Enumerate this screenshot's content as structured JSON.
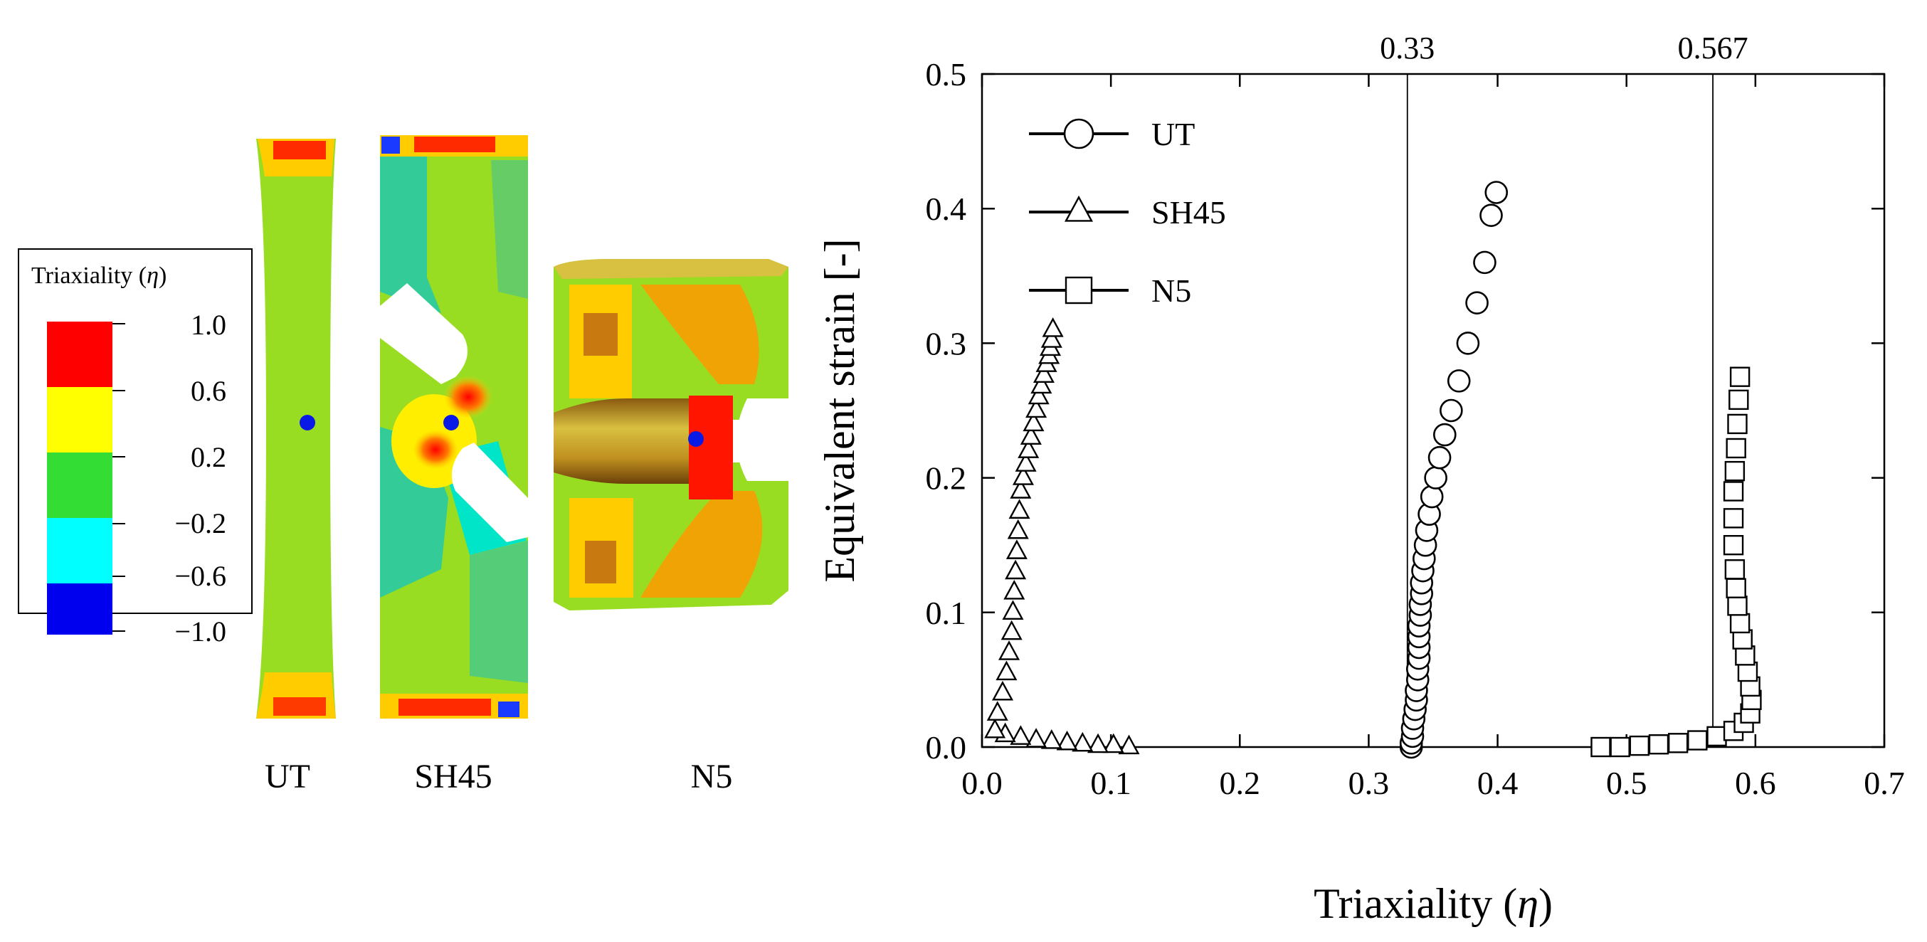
{
  "contour_legend": {
    "title": "Triaxiality (",
    "title_symbol": "η",
    "title_close": ")",
    "levels": [
      {
        "label": "1.0",
        "color": "#ff0000"
      },
      {
        "label": "0.6",
        "color": "#ffff00"
      },
      {
        "label": "0.2",
        "color": "#33dd33"
      },
      {
        "label": "−0.2",
        "color": "#00ffff"
      },
      {
        "label": "−0.6",
        "color": "#0000ee"
      },
      {
        "label": "−1.0",
        "color": ""
      }
    ]
  },
  "specimens": [
    {
      "label": "UT"
    },
    {
      "label": "SH45"
    },
    {
      "label": "N5"
    }
  ],
  "chart_data": {
    "type": "scatter",
    "title": "",
    "xlabel": "Triaxiality (",
    "xlabel_symbol": "η",
    "xlabel_close": ")",
    "ylabel": "Equivalent strain [-]",
    "xlim": [
      0.0,
      0.7
    ],
    "ylim": [
      0.0,
      0.5
    ],
    "x_ticks": [
      "0.0",
      "0.1",
      "0.2",
      "0.3",
      "0.4",
      "0.5",
      "0.6",
      "0.7"
    ],
    "y_ticks": [
      "0.0",
      "0.1",
      "0.2",
      "0.3",
      "0.4",
      "0.5"
    ],
    "grid": false,
    "legend_position": "top-left",
    "reference_lines": [
      {
        "x": 0.33,
        "label": "0.33"
      },
      {
        "x": 0.567,
        "label": "0.567"
      }
    ],
    "series": [
      {
        "name": "UT",
        "marker": "circle",
        "x": [
          0.333,
          0.333,
          0.334,
          0.334,
          0.335,
          0.336,
          0.337,
          0.337,
          0.338,
          0.338,
          0.339,
          0.339,
          0.339,
          0.339,
          0.34,
          0.34,
          0.341,
          0.341,
          0.342,
          0.343,
          0.344,
          0.345,
          0.347,
          0.349,
          0.352,
          0.355,
          0.359,
          0.364,
          0.37,
          0.377,
          0.384,
          0.39,
          0.395,
          0.399
        ],
        "y": [
          0.0,
          0.003,
          0.008,
          0.014,
          0.021,
          0.028,
          0.035,
          0.042,
          0.05,
          0.058,
          0.066,
          0.074,
          0.082,
          0.09,
          0.098,
          0.106,
          0.114,
          0.122,
          0.131,
          0.14,
          0.15,
          0.161,
          0.173,
          0.186,
          0.2,
          0.215,
          0.232,
          0.25,
          0.272,
          0.3,
          0.33,
          0.36,
          0.395,
          0.412
        ]
      },
      {
        "name": "SH45",
        "marker": "triangle",
        "x": [
          0.114,
          0.102,
          0.09,
          0.078,
          0.066,
          0.054,
          0.042,
          0.03,
          0.018,
          0.01,
          0.012,
          0.016,
          0.019,
          0.021,
          0.023,
          0.024,
          0.025,
          0.026,
          0.027,
          0.028,
          0.029,
          0.03,
          0.032,
          0.034,
          0.036,
          0.038,
          0.04,
          0.042,
          0.044,
          0.046,
          0.048,
          0.05,
          0.052,
          0.053,
          0.054,
          0.055
        ],
        "y": [
          0.0,
          0.001,
          0.001,
          0.002,
          0.003,
          0.004,
          0.005,
          0.007,
          0.009,
          0.012,
          0.025,
          0.04,
          0.055,
          0.07,
          0.085,
          0.1,
          0.115,
          0.13,
          0.145,
          0.16,
          0.175,
          0.19,
          0.2,
          0.21,
          0.22,
          0.23,
          0.24,
          0.25,
          0.26,
          0.268,
          0.276,
          0.284,
          0.29,
          0.296,
          0.302,
          0.31
        ]
      },
      {
        "name": "N5",
        "marker": "square",
        "x": [
          0.48,
          0.495,
          0.51,
          0.525,
          0.54,
          0.555,
          0.57,
          0.583,
          0.591,
          0.596,
          0.597,
          0.596,
          0.594,
          0.592,
          0.59,
          0.588,
          0.586,
          0.585,
          0.584,
          0.583,
          0.583,
          0.583,
          0.584,
          0.585,
          0.586,
          0.587,
          0.588
        ],
        "y": [
          0.0,
          0.0,
          0.001,
          0.002,
          0.003,
          0.005,
          0.008,
          0.012,
          0.018,
          0.025,
          0.035,
          0.045,
          0.056,
          0.068,
          0.08,
          0.092,
          0.105,
          0.118,
          0.132,
          0.15,
          0.17,
          0.19,
          0.205,
          0.222,
          0.24,
          0.258,
          0.275
        ]
      }
    ]
  }
}
